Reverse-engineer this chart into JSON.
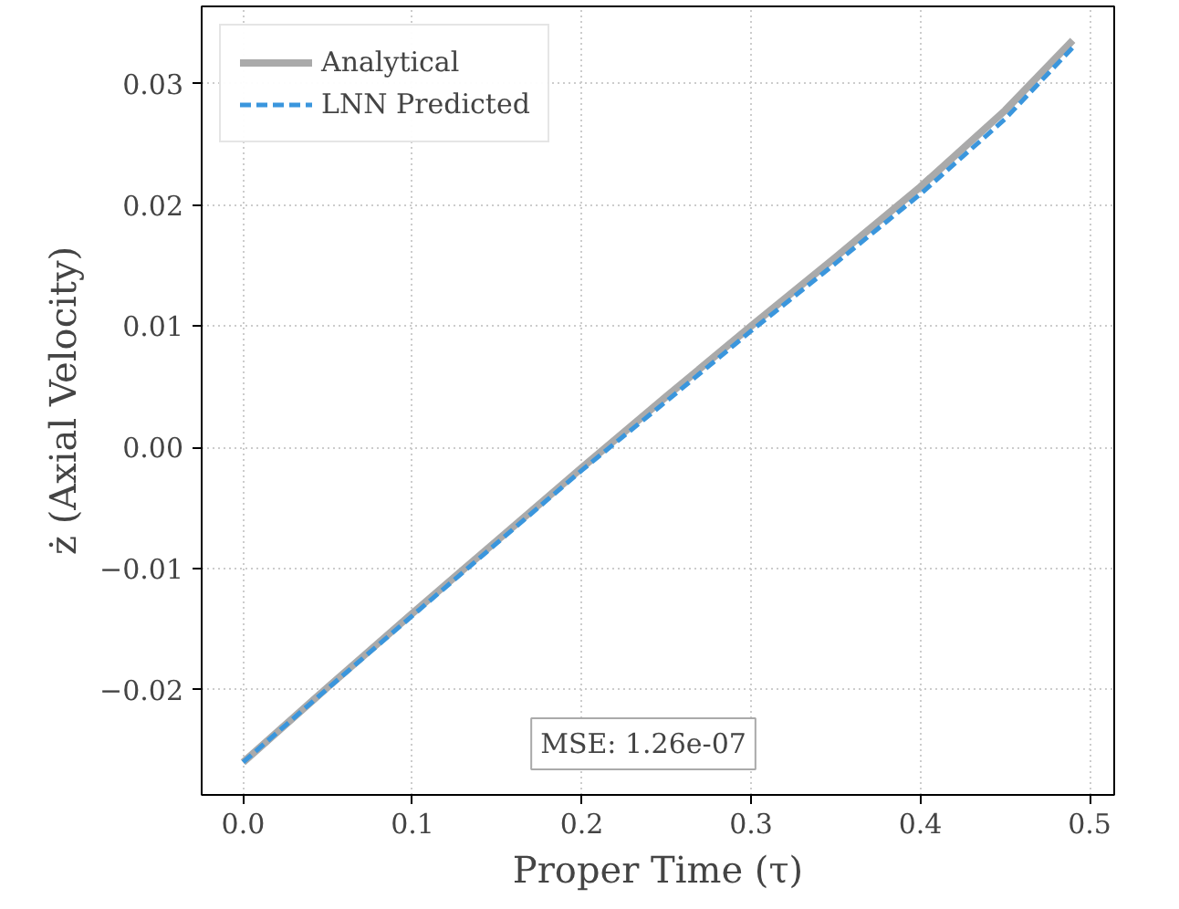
{
  "chart_data": {
    "type": "line",
    "xlabel": "Proper Time (τ)",
    "ylabel": "ż (Axial Velocity)",
    "x": [
      0,
      0.05,
      0.1,
      0.15,
      0.2,
      0.25,
      0.3,
      0.35,
      0.4,
      0.45,
      0.49
    ],
    "series": [
      {
        "name": "Analytical",
        "color": "#aaaaaa",
        "line_style": "solid",
        "values": [
          -0.026,
          -0.0198,
          -0.0137,
          -0.0077,
          -0.0017,
          0.0042,
          0.01,
          0.0157,
          0.0215,
          0.0278,
          0.0336
        ]
      },
      {
        "name": "LNN Predicted",
        "color": "#3a96dd",
        "line_style": "dashed",
        "values": [
          -0.026,
          -0.0199,
          -0.0139,
          -0.0079,
          -0.0019,
          0.0038,
          0.0096,
          0.0152,
          0.0209,
          0.0271,
          0.033
        ]
      }
    ],
    "xlim": [
      -0.0245,
      0.5145
    ],
    "ylim": [
      -0.0287,
      0.0364
    ],
    "xticks": [
      {
        "value": 0,
        "label": "0.0"
      },
      0.1,
      0.2,
      0.3,
      0.4,
      0.5
    ],
    "yticks": [
      {
        "value": -0.02,
        "label": "−0.02"
      },
      {
        "value": -0.01,
        "label": "−0.01"
      },
      {
        "value": 0,
        "label": "0.00"
      },
      0.01,
      0.02,
      0.03
    ],
    "grid": true,
    "legend": "top left",
    "annotations": [
      "MSE: 1.26e-07"
    ]
  }
}
